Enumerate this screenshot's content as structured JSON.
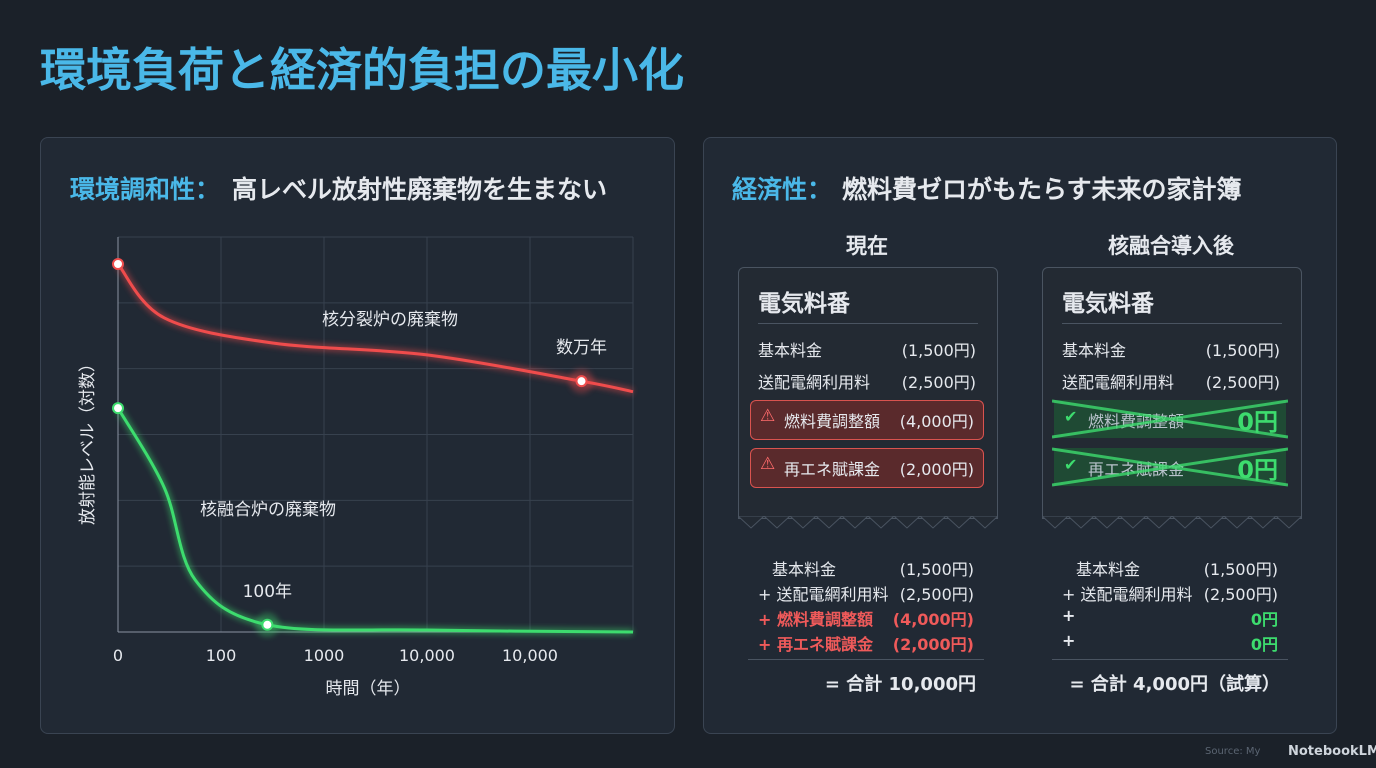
{
  "header": {
    "title": "環境負荷と経済的負担の最小化"
  },
  "environment": {
    "label": "環境調和性：",
    "title": "高レベル放射性廃棄物を生まない"
  },
  "chart_data": {
    "type": "line",
    "xlabel": "時間（年）",
    "ylabel": "放射能レベル（対数）",
    "log_scale": true,
    "grid": true,
    "xlim": [
      0,
      5
    ],
    "ylim": [
      0,
      6
    ],
    "xticks": [
      {
        "value": 0,
        "label": "0"
      },
      {
        "value": 1,
        "label": "100"
      },
      {
        "value": 2,
        "label": "1000"
      },
      {
        "value": 3,
        "label": "10,000"
      },
      {
        "value": 4,
        "label": "10,000"
      },
      5
    ],
    "yticks": [
      0,
      1,
      2,
      3,
      4,
      5,
      6
    ],
    "series": [
      {
        "name": "核分裂炉の廃棄物",
        "color": "#ef4c4c",
        "x": [
          0,
          0.45,
          1.5,
          3,
          4.5,
          5
        ],
        "values": [
          5.59,
          4.77,
          4.39,
          4.21,
          3.81,
          3.65
        ]
      },
      {
        "name": "核融合炉の廃棄物",
        "color": "#3ddc6e",
        "x": [
          0,
          0.45,
          0.75,
          1.45,
          3,
          5
        ],
        "values": [
          3.4,
          2.19,
          0.79,
          0.11,
          0.03,
          0
        ]
      }
    ],
    "annotations": [
      {
        "text": "数万年",
        "series": 0,
        "x": 4.5,
        "y": 3.81
      },
      {
        "text": "100年",
        "series": 1,
        "x": 1.45,
        "y": 0.11
      }
    ]
  },
  "economy": {
    "label": "経済性：",
    "title": "燃料費ゼロがもたらす未来の家計簿",
    "columns": [
      {
        "heading": "現在",
        "receipt_title": "電気料番",
        "items": [
          {
            "label": "基本料金",
            "amount": "(1,500円)"
          },
          {
            "label": "送配電網利用料",
            "amount": "(2,500円)"
          }
        ],
        "flagged": [
          {
            "label": "燃料費調整額",
            "amount": "(4,000円)"
          },
          {
            "label": "再エネ賦課金",
            "amount": "(2,000円)"
          }
        ],
        "summary": [
          {
            "label": "基本料金",
            "amount": "(1,500円)"
          },
          {
            "label": "+ 送配電網利用料",
            "amount": "(2,500円)"
          },
          {
            "label": "+ 燃料費調整額",
            "amount": "(4,000円)"
          },
          {
            "label": "+ 再エネ賦課金",
            "amount": "(2,000円)"
          }
        ],
        "total": "= 合計 10,000円"
      },
      {
        "heading": "核融合導入後",
        "receipt_title": "電気料番",
        "items": [
          {
            "label": "基本料金",
            "amount": "(1,500円)"
          },
          {
            "label": "送配電網利用料",
            "amount": "(2,500円)"
          }
        ],
        "flagged": [
          {
            "label": "燃料費調整額",
            "amount": "0円"
          },
          {
            "label": "再エネ賦課金",
            "amount": "0円"
          }
        ],
        "summary": [
          {
            "label": "基本料金",
            "amount": "(1,500円)"
          },
          {
            "label": "+ 送配電網利用料",
            "amount": "(2,500円)"
          },
          {
            "label": "+",
            "amount": "0円"
          },
          {
            "label": "+",
            "amount": "0円"
          }
        ],
        "total": "= 合計 4,000円（試算）"
      }
    ]
  },
  "footer": {
    "source": "Source: My",
    "brand": "NotebookLM"
  }
}
